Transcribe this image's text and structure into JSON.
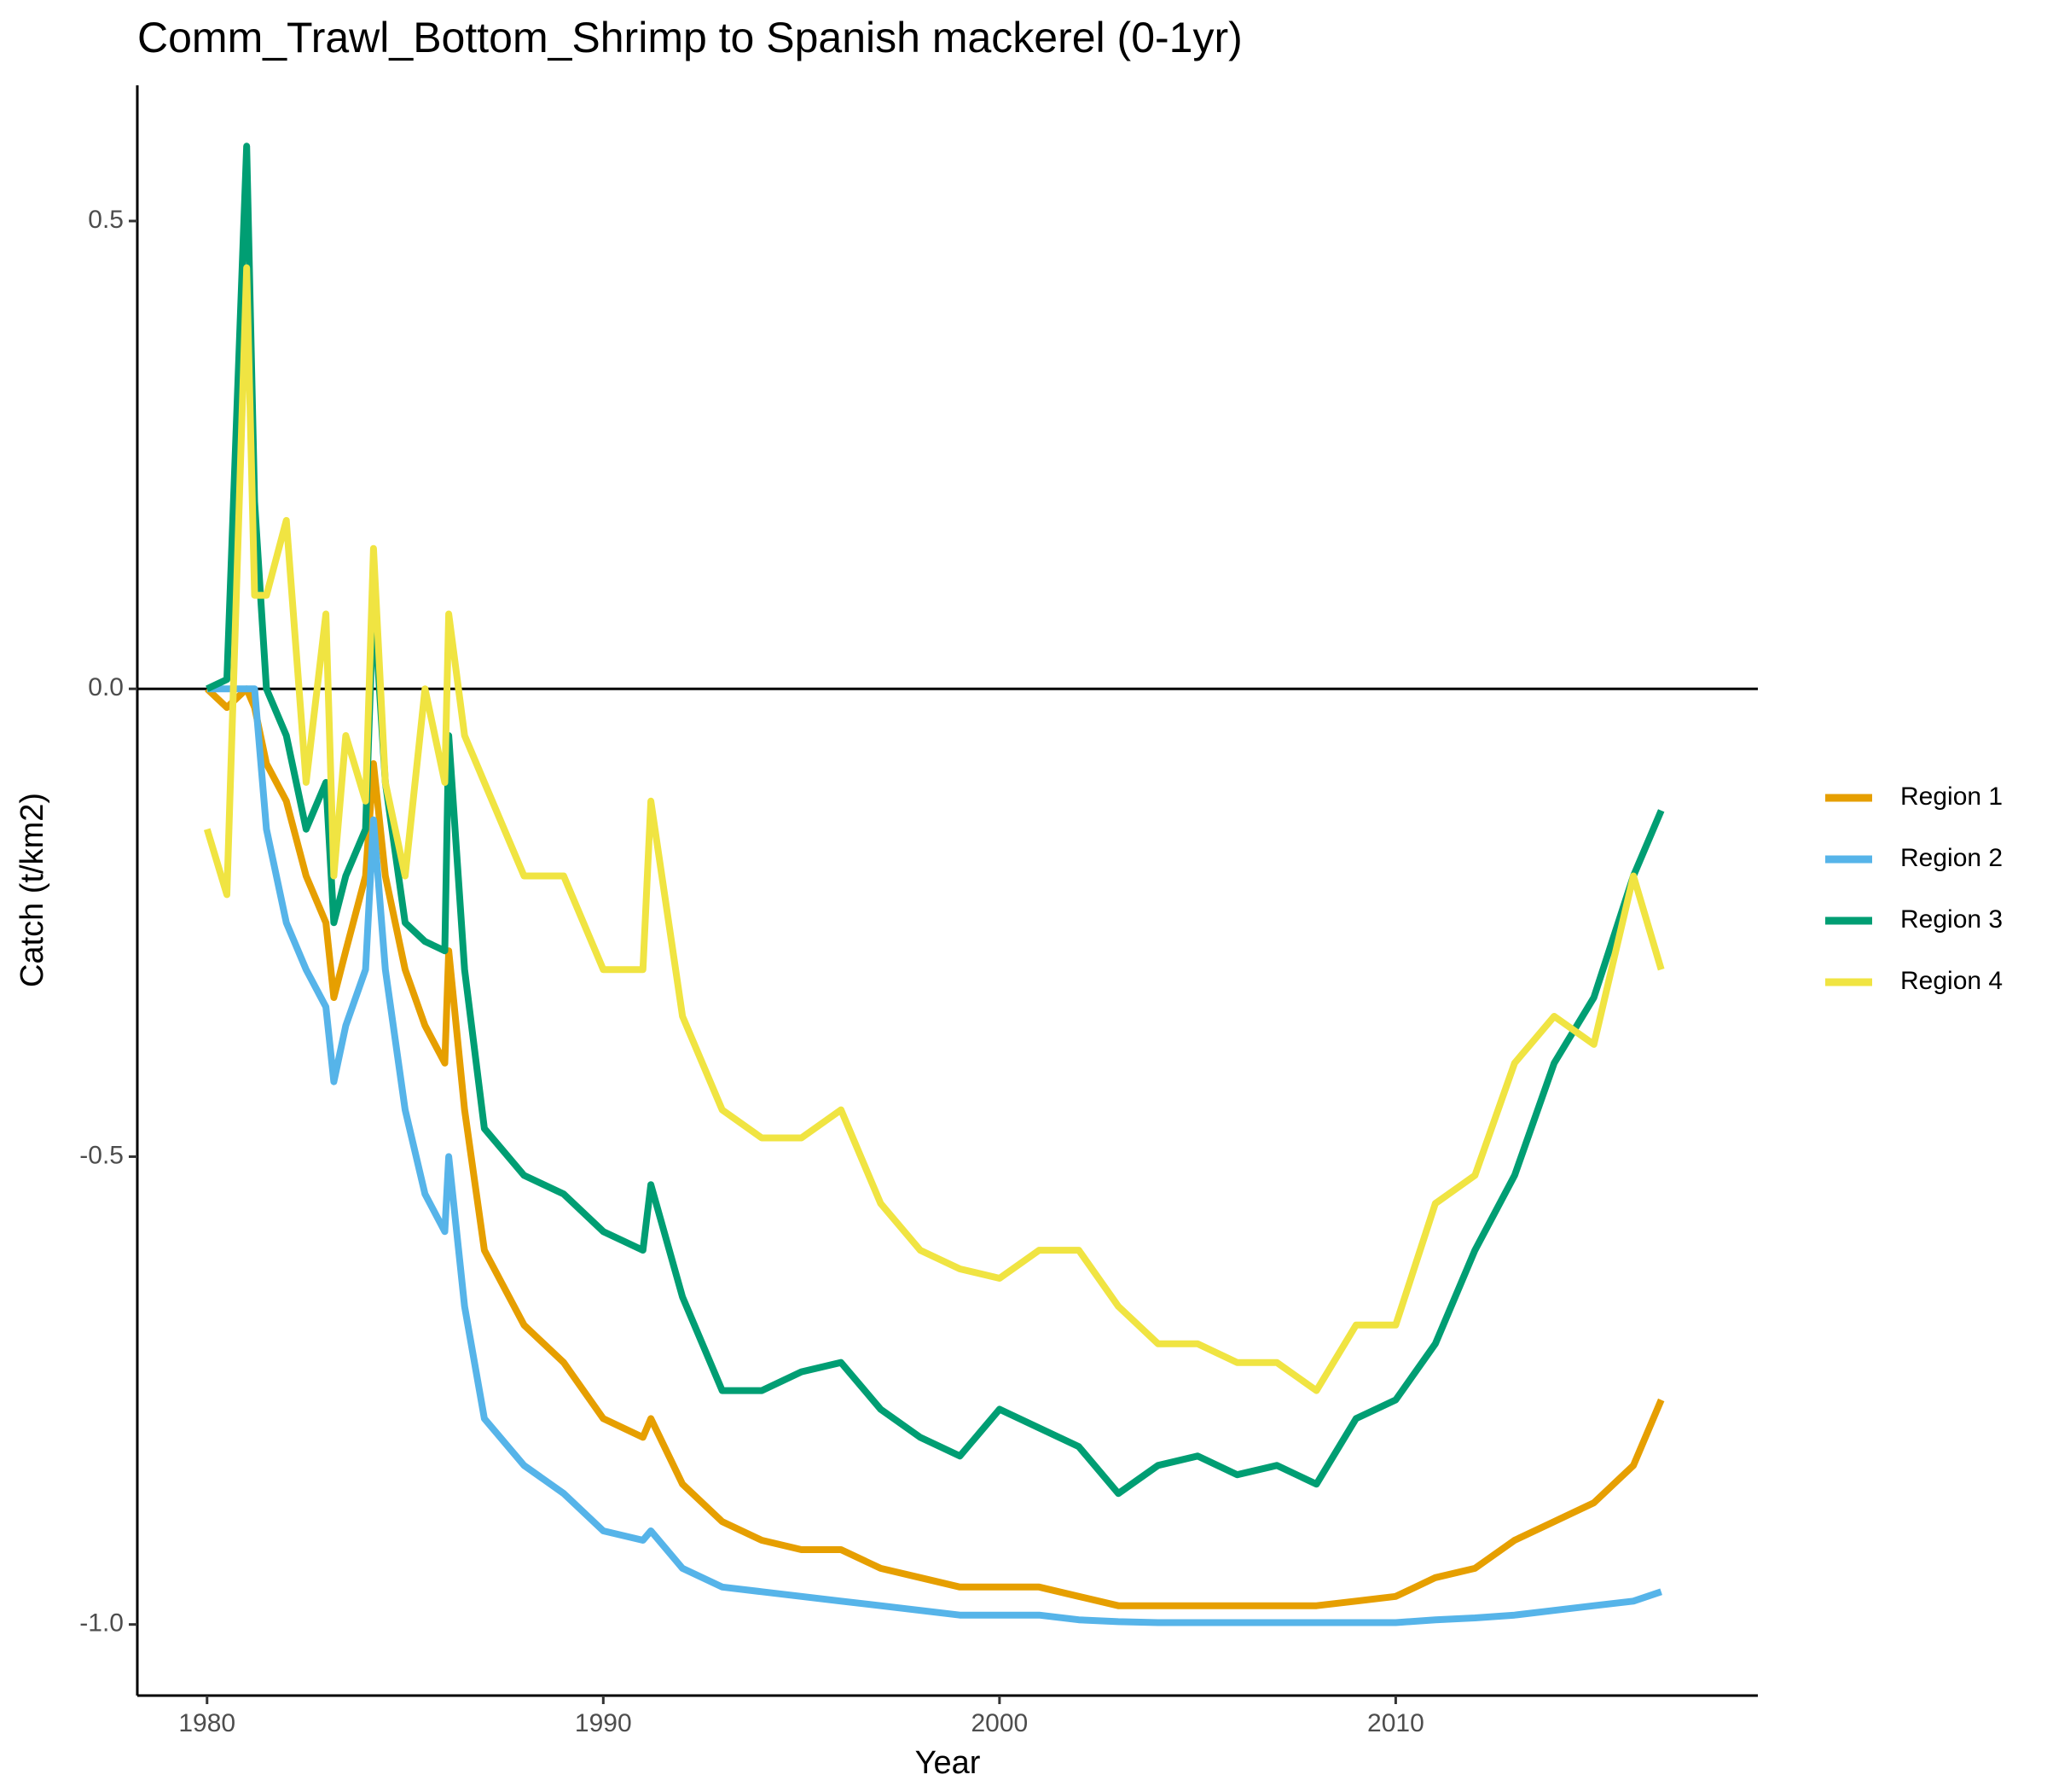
{
  "chart_data": {
    "type": "line",
    "title": "Comm_Trawl_Bottom_Shrimp to Spanish mackerel (0-1yr)",
    "x_label": "Year",
    "y_label": "Catch (t/km2)",
    "x": [
      1980,
      1980.5,
      1981,
      1981.2,
      1981.5,
      1982,
      1982.5,
      1983,
      1983.2,
      1983.5,
      1984,
      1984.2,
      1984.5,
      1985,
      1985.5,
      1986,
      1986.1,
      1986.5,
      1987,
      1988,
      1989,
      1990,
      1991,
      1991.2,
      1992,
      1993,
      1994,
      1995,
      1996,
      1997,
      1998,
      1999,
      2000,
      2001,
      2002,
      2003,
      2004,
      2005,
      2006,
      2007,
      2008,
      2009,
      2010,
      2011,
      2012,
      2013,
      2014,
      2015,
      2016,
      2016.7
    ],
    "series": [
      {
        "name": "Region 1",
        "color": "#E69F00",
        "values": [
          0,
          -0.02,
          0,
          -0.02,
          -0.08,
          -0.12,
          -0.2,
          -0.25,
          -0.33,
          -0.28,
          -0.2,
          -0.08,
          -0.2,
          -0.3,
          -0.36,
          -0.4,
          -0.28,
          -0.45,
          -0.6,
          -0.68,
          -0.72,
          -0.78,
          -0.8,
          -0.78,
          -0.85,
          -0.89,
          -0.91,
          -0.92,
          -0.92,
          -0.94,
          -0.95,
          -0.96,
          -0.96,
          -0.96,
          -0.97,
          -0.98,
          -0.98,
          -0.98,
          -0.98,
          -0.98,
          -0.98,
          -0.975,
          -0.97,
          -0.95,
          -0.94,
          -0.91,
          -0.89,
          -0.87,
          -0.83,
          -0.76
        ]
      },
      {
        "name": "Region 2",
        "color": "#56B4E9",
        "values": [
          0,
          0,
          0,
          0,
          -0.15,
          -0.25,
          -0.3,
          -0.34,
          -0.42,
          -0.36,
          -0.3,
          -0.14,
          -0.3,
          -0.45,
          -0.54,
          -0.58,
          -0.5,
          -0.66,
          -0.78,
          -0.83,
          -0.86,
          -0.9,
          -0.91,
          -0.9,
          -0.94,
          -0.96,
          -0.965,
          -0.97,
          -0.975,
          -0.98,
          -0.985,
          -0.99,
          -0.99,
          -0.99,
          -0.995,
          -0.997,
          -0.998,
          -0.998,
          -0.998,
          -0.998,
          -0.998,
          -0.998,
          -0.998,
          -0.995,
          -0.993,
          -0.99,
          -0.985,
          -0.98,
          -0.975,
          -0.965
        ]
      },
      {
        "name": "Region 3",
        "color": "#009E73",
        "values": [
          0,
          0.01,
          0.58,
          0.2,
          0,
          -0.05,
          -0.15,
          -0.1,
          -0.25,
          -0.2,
          -0.15,
          0.1,
          -0.1,
          -0.25,
          -0.27,
          -0.28,
          -0.05,
          -0.3,
          -0.47,
          -0.52,
          -0.54,
          -0.58,
          -0.6,
          -0.53,
          -0.65,
          -0.75,
          -0.75,
          -0.73,
          -0.72,
          -0.77,
          -0.8,
          -0.82,
          -0.77,
          -0.79,
          -0.81,
          -0.86,
          -0.83,
          -0.82,
          -0.84,
          -0.83,
          -0.85,
          -0.78,
          -0.76,
          -0.7,
          -0.6,
          -0.52,
          -0.4,
          -0.33,
          -0.2,
          -0.13
        ]
      },
      {
        "name": "Region 4",
        "color": "#F0E442",
        "values": [
          -0.15,
          -0.22,
          0.45,
          0.1,
          0.1,
          0.18,
          -0.1,
          0.08,
          -0.2,
          -0.05,
          -0.12,
          0.15,
          -0.1,
          -0.2,
          0,
          -0.1,
          0.08,
          -0.05,
          -0.1,
          -0.2,
          -0.2,
          -0.3,
          -0.3,
          -0.12,
          -0.35,
          -0.45,
          -0.48,
          -0.48,
          -0.45,
          -0.55,
          -0.6,
          -0.62,
          -0.63,
          -0.6,
          -0.6,
          -0.66,
          -0.7,
          -0.7,
          -0.72,
          -0.72,
          -0.75,
          -0.68,
          -0.68,
          -0.55,
          -0.52,
          -0.4,
          -0.35,
          -0.38,
          -0.2,
          -0.3
        ]
      }
    ],
    "xlim": [
      1978.24,
      2019.14
    ],
    "ylim": [
      -1.076,
      0.645
    ],
    "xticks": [
      1980,
      1990,
      2000,
      2010
    ],
    "yticks": [
      {
        "value": -1.0,
        "label": "-1.0"
      },
      {
        "value": -0.5,
        "label": "-0.5"
      },
      {
        "value": 0,
        "label": "0.0"
      },
      {
        "value": 0.5,
        "label": "0.5"
      }
    ],
    "hline": 0,
    "legend": "right"
  }
}
